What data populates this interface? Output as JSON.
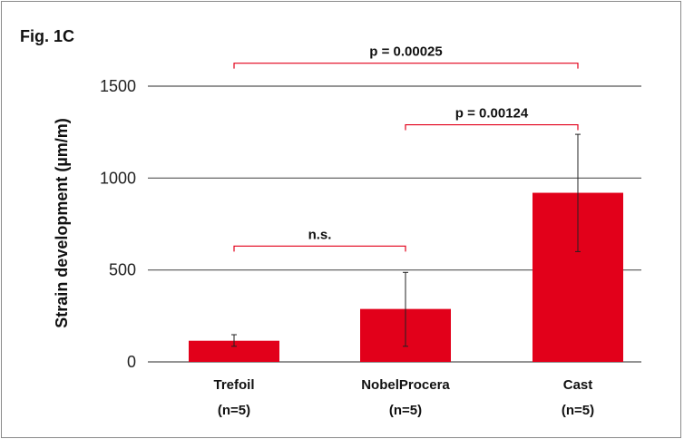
{
  "figure_label": "Fig. 1C",
  "chart_data": {
    "type": "bar",
    "categories": [
      "Trefoil",
      "NobelProcera",
      "Cast"
    ],
    "category_sublabels": [
      "(n=5)",
      "(n=5)",
      "(n=5)"
    ],
    "values": [
      115,
      288,
      920
    ],
    "errors": [
      {
        "low": 85,
        "high": 148
      },
      {
        "low": 85,
        "high": 487
      },
      {
        "low": 600,
        "high": 1238
      }
    ],
    "ylabel": "Strain development (µm/m)",
    "xlabel": "",
    "ylim": [
      0,
      1500
    ],
    "yticks": [
      0,
      500,
      1000,
      1500
    ],
    "grid": true,
    "bar_color": "#e2001a",
    "comparisons": [
      {
        "from": 0,
        "to": 1,
        "value": 630,
        "label": "n.s."
      },
      {
        "from": 1,
        "to": 2,
        "value": 1290,
        "label": "p = 0.00124"
      },
      {
        "from": 0,
        "to": 2,
        "value": 1625,
        "label": "p = 0.00025"
      }
    ],
    "bracket_color": "#e2001a"
  }
}
